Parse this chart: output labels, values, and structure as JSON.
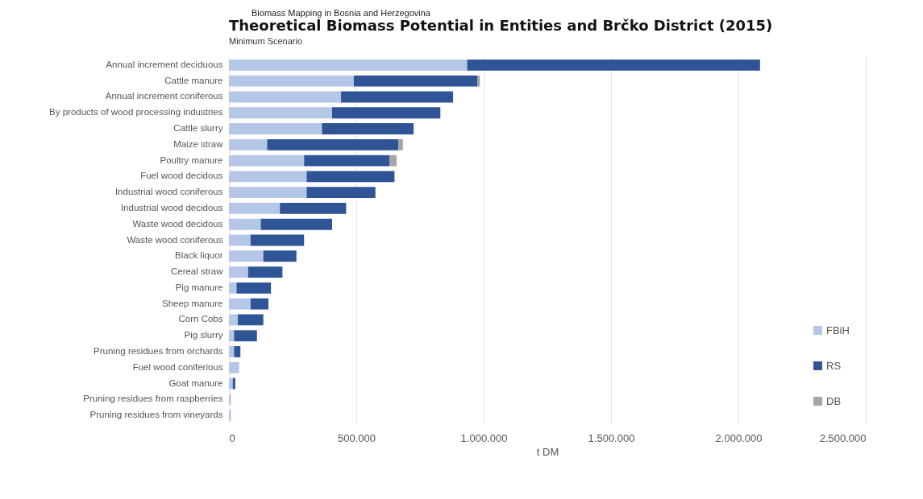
{
  "chart_data": {
    "type": "bar",
    "orientation": "horizontal",
    "stacked": true,
    "title": "Theoretical Biomass Potential in Entities and Brčko District (2015)",
    "subtitle": "Minimum Scenario",
    "annotations": [
      "Biomass Mapping in Bosnia and Herzegovina"
    ],
    "xlabel": "t DM",
    "categories": [
      "Annual increment deciduous",
      "Cattle manure",
      "Annual increment coniferous",
      "By products of wood processing industries",
      "Cattle slurry",
      "Maize straw",
      "Poultry manure",
      "Fuel wood decidous",
      "Industrial wood coniferous",
      "Industrial wood decidous",
      "Waste wood decidous",
      "Waste wood coniferous",
      "Black liquor",
      "Cereal straw",
      "Pig manure",
      "Sheep manure",
      "Corn Cobs",
      "Pig slurry",
      "Pruning residues from orchards",
      "Fuel wood coniferious",
      "Goat manure",
      "Pruning residues from raspberries",
      "Pruning residues from vineyards"
    ],
    "series": [
      {
        "name": "FBiH",
        "color": "#b4c7e7",
        "values": [
          935000,
          490000,
          440000,
          405000,
          365000,
          150000,
          295000,
          305000,
          305000,
          200000,
          125000,
          85000,
          135000,
          75000,
          30000,
          85000,
          35000,
          20000,
          20000,
          40000,
          15000,
          8000,
          8000
        ]
      },
      {
        "name": "RS",
        "color": "#2f5597",
        "values": [
          1150000,
          485000,
          440000,
          425000,
          360000,
          515000,
          335000,
          345000,
          270000,
          260000,
          280000,
          210000,
          130000,
          135000,
          135000,
          70000,
          100000,
          90000,
          25000,
          0,
          10000,
          0,
          0
        ]
      },
      {
        "name": "DB",
        "color": "#a5a5a5",
        "values": [
          0,
          10000,
          0,
          0,
          0,
          18000,
          28000,
          0,
          0,
          0,
          0,
          0,
          0,
          0,
          0,
          0,
          0,
          0,
          0,
          0,
          0,
          0,
          0
        ]
      }
    ],
    "xlim": [
      0,
      2500000
    ],
    "xticks": [
      0,
      {
        "value": 500000,
        "label": "500.000"
      },
      {
        "value": 1000000,
        "label": "1.000.000"
      },
      {
        "value": 1500000,
        "label": "1.500.000"
      },
      {
        "value": 2000000,
        "label": "2.000.000"
      },
      {
        "value": 2500000,
        "label": "2.500.000"
      }
    ],
    "grid": "x",
    "legend": "bottom right"
  }
}
